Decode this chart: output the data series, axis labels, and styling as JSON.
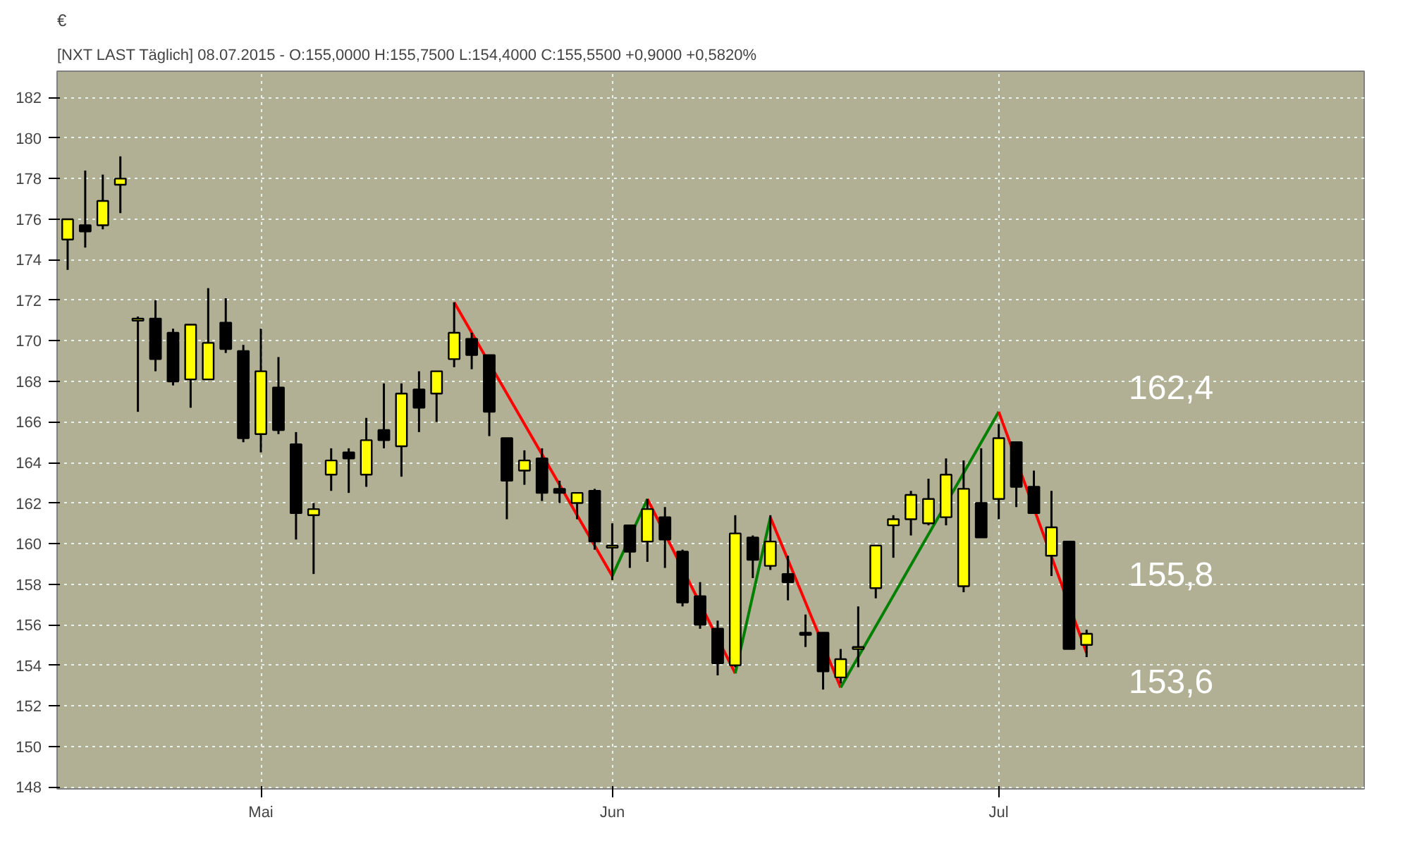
{
  "chart_data": {
    "type": "candlestick",
    "title": "[NXT LAST Täglich] 08.07.2015 - O:155,0000 H:155,7500 L:154,4000 C:155,5500 +0,9000 +0,5820%",
    "ylabel": "€",
    "categories": [
      null,
      null,
      null,
      null,
      null,
      null,
      null,
      null,
      null,
      null,
      null,
      "Mai",
      null,
      null,
      null,
      null,
      null,
      null,
      null,
      null,
      null,
      null,
      null,
      null,
      null,
      null,
      null,
      null,
      null,
      null,
      null,
      "Jun",
      null,
      null,
      null,
      null,
      null,
      null,
      null,
      null,
      null,
      null,
      null,
      null,
      null,
      null,
      null,
      null,
      null,
      null,
      null,
      null,
      null,
      "Jul",
      null,
      null,
      null,
      null,
      null
    ],
    "ohlc": [
      [
        175.0,
        176.0,
        173.5,
        176.0
      ],
      [
        175.7,
        178.4,
        174.6,
        175.4
      ],
      [
        175.7,
        178.2,
        175.5,
        176.9
      ],
      [
        177.7,
        179.1,
        176.3,
        178.0
      ],
      [
        171.0,
        171.2,
        166.5,
        171.1
      ],
      [
        171.1,
        172.0,
        168.5,
        169.1
      ],
      [
        170.4,
        170.6,
        167.8,
        168.0
      ],
      [
        168.1,
        170.8,
        166.7,
        170.8
      ],
      [
        168.1,
        172.6,
        168.1,
        169.9
      ],
      [
        170.9,
        172.1,
        169.4,
        169.6
      ],
      [
        169.5,
        169.8,
        165.0,
        165.2
      ],
      [
        165.4,
        170.6,
        164.5,
        168.5
      ],
      [
        167.7,
        169.2,
        165.4,
        165.6
      ],
      [
        164.9,
        165.5,
        160.2,
        161.5
      ],
      [
        161.4,
        162.0,
        158.5,
        161.7
      ],
      [
        163.4,
        164.7,
        162.6,
        164.1
      ],
      [
        164.5,
        164.7,
        162.5,
        164.2
      ],
      [
        163.4,
        166.2,
        162.8,
        165.1
      ],
      [
        165.6,
        167.9,
        164.7,
        165.1
      ],
      [
        164.8,
        167.9,
        163.3,
        167.4
      ],
      [
        167.6,
        168.5,
        165.5,
        166.7
      ],
      [
        167.4,
        168.5,
        166.0,
        168.5
      ],
      [
        169.1,
        171.9,
        168.7,
        170.4
      ],
      [
        170.1,
        170.4,
        168.6,
        169.3
      ],
      [
        169.3,
        169.3,
        165.3,
        166.5
      ],
      [
        165.2,
        165.2,
        161.2,
        163.1
      ],
      [
        163.6,
        164.6,
        162.9,
        164.1
      ],
      [
        164.2,
        164.7,
        162.1,
        162.5
      ],
      [
        162.7,
        163.1,
        162.0,
        162.5
      ],
      [
        162.0,
        162.5,
        161.2,
        162.5
      ],
      [
        162.6,
        162.7,
        159.7,
        160.1
      ],
      [
        159.8,
        161.0,
        158.2,
        159.9
      ],
      [
        160.9,
        160.9,
        158.8,
        159.6
      ],
      [
        160.1,
        162.2,
        159.1,
        161.7
      ],
      [
        161.3,
        161.8,
        158.8,
        160.2
      ],
      [
        159.6,
        159.7,
        156.9,
        157.1
      ],
      [
        157.4,
        158.1,
        155.8,
        156.0
      ],
      [
        155.8,
        156.2,
        153.5,
        154.1
      ],
      [
        154.0,
        161.4,
        153.9,
        160.5
      ],
      [
        160.3,
        160.4,
        158.3,
        159.2
      ],
      [
        158.9,
        161.4,
        158.7,
        160.1
      ],
      [
        158.5,
        159.4,
        157.2,
        158.1
      ],
      [
        155.6,
        156.5,
        154.9,
        155.5
      ],
      [
        155.6,
        155.6,
        152.8,
        153.7
      ],
      [
        153.4,
        154.8,
        153.1,
        154.3
      ],
      [
        154.8,
        156.9,
        153.9,
        154.9
      ],
      [
        157.8,
        159.9,
        157.3,
        159.9
      ],
      [
        160.9,
        161.4,
        159.3,
        161.2
      ],
      [
        161.2,
        162.6,
        160.4,
        162.4
      ],
      [
        161.0,
        163.2,
        160.9,
        162.2
      ],
      [
        161.3,
        164.2,
        160.9,
        163.4
      ],
      [
        157.9,
        164.1,
        157.6,
        162.7
      ],
      [
        162.0,
        164.7,
        160.3,
        160.3
      ],
      [
        162.2,
        165.9,
        161.2,
        165.2
      ],
      [
        165.0,
        165.0,
        161.8,
        162.8
      ],
      [
        162.8,
        163.6,
        161.5,
        161.5
      ],
      [
        159.4,
        162.6,
        158.4,
        160.8
      ],
      [
        160.1,
        160.1,
        154.8,
        154.8
      ],
      [
        155.0,
        155.75,
        154.4,
        155.55
      ]
    ],
    "series": [
      {
        "type": "line",
        "color": "#ff0000",
        "values": [
          null,
          null,
          null,
          null,
          null,
          null,
          null,
          null,
          null,
          null,
          null,
          null,
          null,
          null,
          null,
          null,
          null,
          null,
          null,
          null,
          null,
          null,
          171.9,
          null,
          null,
          null,
          null,
          null,
          null,
          null,
          null,
          158.4,
          null,
          null,
          null,
          null,
          null,
          null,
          null,
          null,
          null,
          null,
          null,
          null,
          null,
          null,
          null,
          null,
          null,
          null,
          null,
          null,
          null,
          null,
          null,
          null,
          null,
          null,
          null
        ]
      },
      {
        "type": "line",
        "color": "#008000",
        "values": [
          null,
          null,
          null,
          null,
          null,
          null,
          null,
          null,
          null,
          null,
          null,
          null,
          null,
          null,
          null,
          null,
          null,
          null,
          null,
          null,
          null,
          null,
          null,
          null,
          null,
          null,
          null,
          null,
          null,
          null,
          null,
          158.4,
          null,
          162.2,
          null,
          null,
          null,
          null,
          null,
          null,
          null,
          null,
          null,
          null,
          null,
          null,
          null,
          null,
          null,
          null,
          null,
          null,
          null,
          null,
          null,
          null,
          null,
          null,
          null
        ]
      },
      {
        "type": "line",
        "color": "#ff0000",
        "values": [
          null,
          null,
          null,
          null,
          null,
          null,
          null,
          null,
          null,
          null,
          null,
          null,
          null,
          null,
          null,
          null,
          null,
          null,
          null,
          null,
          null,
          null,
          null,
          null,
          null,
          null,
          null,
          null,
          null,
          null,
          null,
          null,
          null,
          162.2,
          null,
          null,
          null,
          null,
          153.6,
          null,
          null,
          null,
          null,
          null,
          null,
          null,
          null,
          null,
          null,
          null,
          null,
          null,
          null,
          null,
          null,
          null,
          null,
          null,
          null
        ]
      },
      {
        "type": "line",
        "color": "#008000",
        "values": [
          null,
          null,
          null,
          null,
          null,
          null,
          null,
          null,
          null,
          null,
          null,
          null,
          null,
          null,
          null,
          null,
          null,
          null,
          null,
          null,
          null,
          null,
          null,
          null,
          null,
          null,
          null,
          null,
          null,
          null,
          null,
          null,
          null,
          null,
          null,
          null,
          null,
          null,
          153.6,
          null,
          161.3,
          null,
          null,
          null,
          null,
          null,
          null,
          null,
          null,
          null,
          null,
          null,
          null,
          null,
          null,
          null,
          null,
          null,
          null
        ]
      },
      {
        "type": "line",
        "color": "#ff0000",
        "values": [
          null,
          null,
          null,
          null,
          null,
          null,
          null,
          null,
          null,
          null,
          null,
          null,
          null,
          null,
          null,
          null,
          null,
          null,
          null,
          null,
          null,
          null,
          null,
          null,
          null,
          null,
          null,
          null,
          null,
          null,
          null,
          null,
          null,
          null,
          null,
          null,
          null,
          null,
          null,
          null,
          161.3,
          null,
          null,
          null,
          152.9,
          null,
          null,
          null,
          null,
          null,
          null,
          null,
          null,
          null,
          null,
          null,
          null,
          null,
          null
        ]
      },
      {
        "type": "line",
        "color": "#008000",
        "values": [
          null,
          null,
          null,
          null,
          null,
          null,
          null,
          null,
          null,
          null,
          null,
          null,
          null,
          null,
          null,
          null,
          null,
          null,
          null,
          null,
          null,
          null,
          null,
          null,
          null,
          null,
          null,
          null,
          null,
          null,
          null,
          null,
          null,
          null,
          null,
          null,
          null,
          null,
          null,
          null,
          null,
          null,
          null,
          null,
          152.9,
          null,
          null,
          null,
          null,
          null,
          null,
          null,
          null,
          166.5,
          null,
          null,
          null,
          null,
          null
        ]
      },
      {
        "type": "line",
        "color": "#ff0000",
        "values": [
          null,
          null,
          null,
          null,
          null,
          null,
          null,
          null,
          null,
          null,
          null,
          null,
          null,
          null,
          null,
          null,
          null,
          null,
          null,
          null,
          null,
          null,
          null,
          null,
          null,
          null,
          null,
          null,
          null,
          null,
          null,
          null,
          null,
          null,
          null,
          null,
          null,
          null,
          null,
          null,
          null,
          null,
          null,
          null,
          null,
          null,
          null,
          null,
          null,
          null,
          null,
          null,
          null,
          166.5,
          null,
          null,
          null,
          null,
          154.6
        ]
      }
    ],
    "annotations": [
      "162,4",
      "155,8",
      "153,6"
    ],
    "ylim": [
      147.9,
      183.3
    ],
    "yticks": [
      148,
      150,
      152,
      154,
      156,
      158,
      160,
      162,
      164,
      166,
      168,
      170,
      172,
      174,
      176,
      178,
      180,
      182
    ],
    "grid": true
  }
}
